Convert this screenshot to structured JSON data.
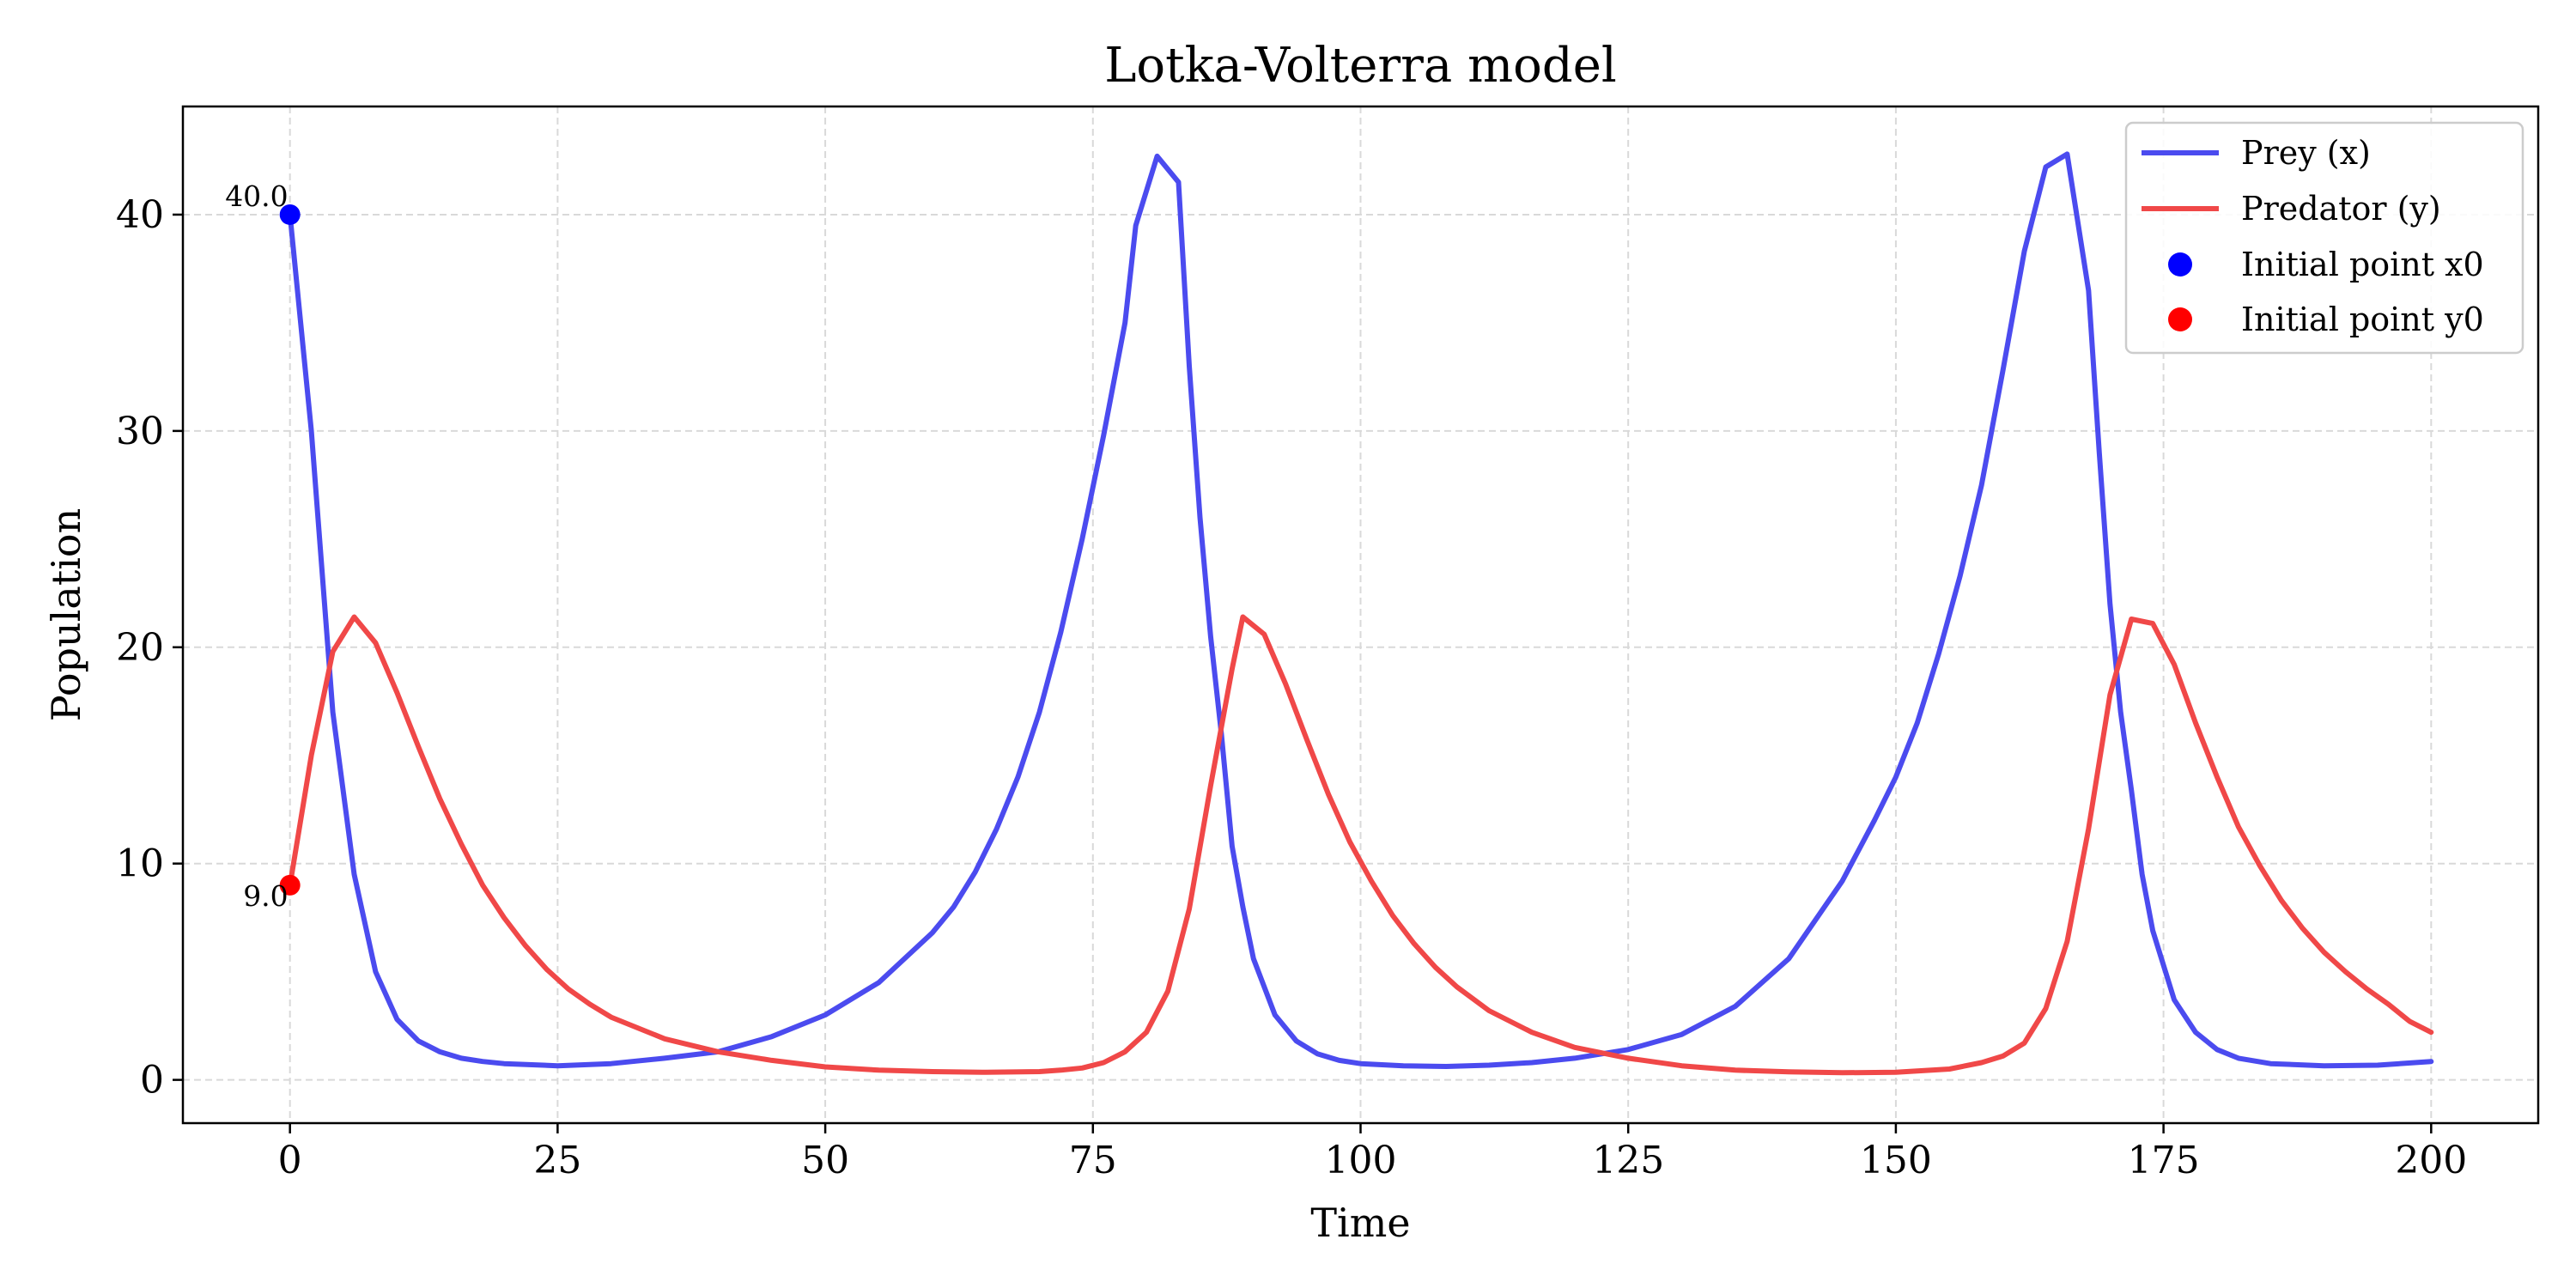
{
  "chart_data": {
    "type": "line",
    "title": "Lotka-Volterra model",
    "xlabel": "Time",
    "ylabel": "Population",
    "xlim": [
      -10,
      210
    ],
    "ylim": [
      -2,
      45
    ],
    "grid": true,
    "legend_position": "top-right",
    "xticks": [
      0,
      25,
      50,
      75,
      100,
      125,
      150,
      175,
      200
    ],
    "xtick_labels": [
      "0",
      "25",
      "50",
      "75",
      "100",
      "125",
      "150",
      "175",
      "200"
    ],
    "yticks": [
      0,
      10,
      20,
      30,
      40
    ],
    "ytick_labels": [
      "0",
      "10",
      "20",
      "30",
      "40"
    ],
    "series": [
      {
        "name": "Prey (x)",
        "color": "#4b4bef",
        "x": [
          0,
          2,
          4,
          6,
          8,
          10,
          12,
          14,
          16,
          18,
          20,
          25,
          30,
          35,
          40,
          45,
          50,
          55,
          60,
          62,
          64,
          66,
          68,
          70,
          72,
          74,
          76,
          78,
          79,
          81,
          83,
          84,
          85,
          86,
          87,
          88,
          89,
          90,
          92,
          94,
          96,
          98,
          100,
          104,
          108,
          112,
          116,
          120,
          125,
          130,
          135,
          140,
          145,
          148,
          150,
          152,
          154,
          156,
          158,
          160,
          162,
          164,
          166,
          168,
          169,
          170,
          171,
          172,
          173,
          174,
          176,
          178,
          180,
          182,
          185,
          190,
          195,
          200
        ],
        "y": [
          40,
          30,
          17,
          9.5,
          5,
          2.8,
          1.8,
          1.3,
          1.0,
          0.85,
          0.75,
          0.65,
          0.75,
          1.0,
          1.3,
          2.0,
          3.0,
          4.5,
          6.8,
          8.0,
          9.6,
          11.6,
          14.0,
          17.0,
          20.7,
          25.0,
          29.8,
          35.0,
          39.5,
          42.7,
          41.5,
          33.0,
          26.0,
          20.5,
          16.0,
          10.8,
          8.0,
          5.6,
          3.0,
          1.8,
          1.2,
          0.9,
          0.75,
          0.65,
          0.62,
          0.68,
          0.8,
          1.0,
          1.4,
          2.1,
          3.4,
          5.6,
          9.2,
          12.0,
          14.0,
          16.5,
          19.7,
          23.3,
          27.5,
          32.8,
          38.3,
          42.2,
          42.8,
          36.5,
          29.0,
          22.0,
          17.0,
          13.4,
          9.5,
          6.9,
          3.7,
          2.2,
          1.4,
          1.0,
          0.75,
          0.65,
          0.68,
          0.85
        ]
      },
      {
        "name": "Predator (y)",
        "color": "#f04848",
        "x": [
          0,
          2,
          4,
          6,
          8,
          10,
          12,
          14,
          16,
          18,
          20,
          22,
          24,
          26,
          28,
          30,
          35,
          40,
          45,
          50,
          55,
          60,
          65,
          70,
          72,
          74,
          76,
          78,
          80,
          82,
          84,
          86,
          88,
          89,
          91,
          93,
          95,
          97,
          99,
          101,
          103,
          105,
          107,
          109,
          112,
          116,
          120,
          125,
          130,
          135,
          140,
          145,
          150,
          155,
          158,
          160,
          162,
          164,
          166,
          168,
          170,
          172,
          174,
          176,
          178,
          180,
          182,
          184,
          186,
          188,
          190,
          192,
          194,
          196,
          198,
          200
        ],
        "y": [
          9.0,
          15.0,
          19.8,
          21.4,
          20.2,
          17.9,
          15.4,
          13.0,
          10.9,
          9.0,
          7.5,
          6.2,
          5.1,
          4.2,
          3.5,
          2.9,
          1.9,
          1.3,
          0.9,
          0.6,
          0.45,
          0.38,
          0.35,
          0.38,
          0.45,
          0.55,
          0.8,
          1.3,
          2.2,
          4.1,
          7.9,
          13.6,
          19.0,
          21.4,
          20.6,
          18.3,
          15.7,
          13.2,
          11.0,
          9.2,
          7.6,
          6.3,
          5.2,
          4.3,
          3.2,
          2.2,
          1.5,
          1.0,
          0.65,
          0.45,
          0.37,
          0.33,
          0.35,
          0.5,
          0.8,
          1.1,
          1.7,
          3.3,
          6.4,
          11.6,
          17.8,
          21.3,
          21.1,
          19.2,
          16.5,
          14.0,
          11.7,
          9.9,
          8.3,
          7.0,
          5.9,
          5.0,
          4.2,
          3.5,
          2.7,
          2.2
        ]
      }
    ],
    "markers": [
      {
        "name": "Initial point x0",
        "x": 0,
        "y": 40.0,
        "label": "40.0",
        "color": "#0000ff"
      },
      {
        "name": "Initial point y0",
        "x": 0,
        "y": 9.0,
        "label": "9.0",
        "color": "#ff0000"
      }
    ]
  }
}
